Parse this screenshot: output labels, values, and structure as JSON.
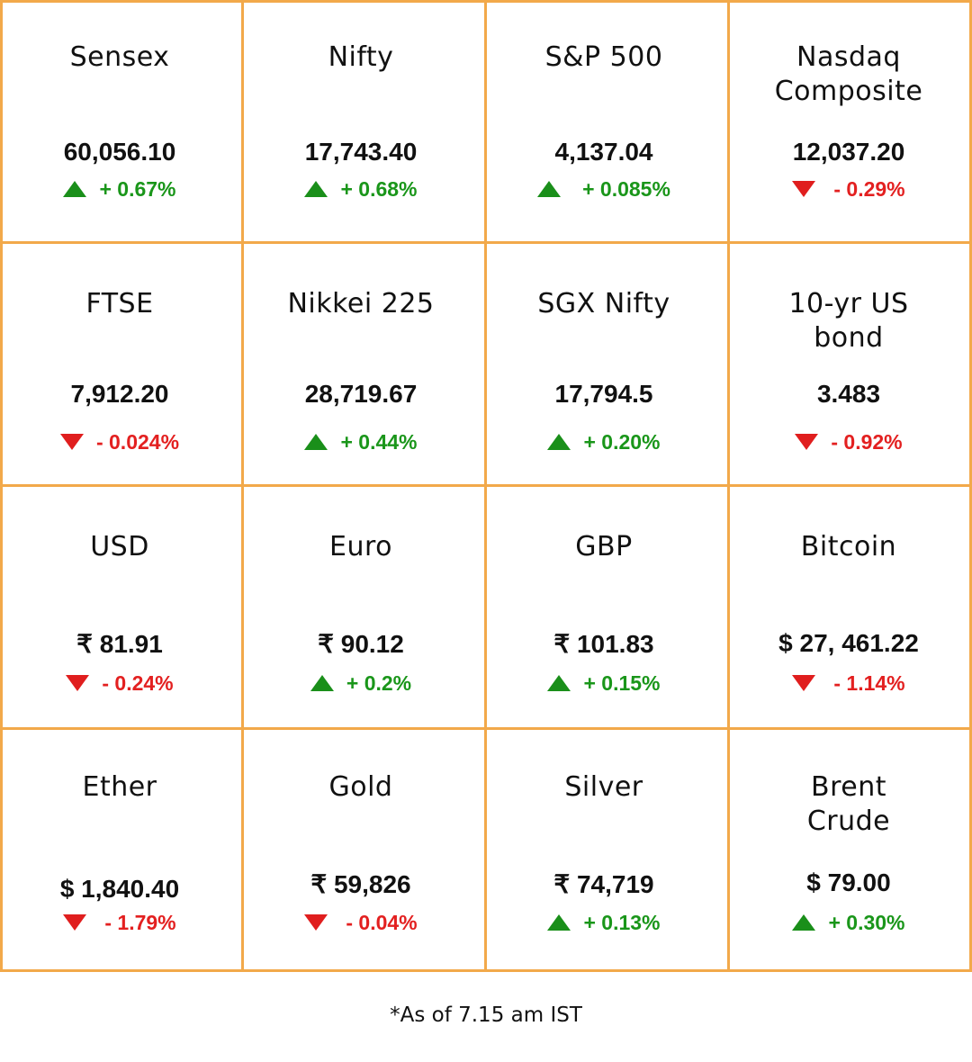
{
  "markets": [
    {
      "name": "Sensex",
      "value": "60,056.10",
      "change": "+ 0.67%",
      "direction": "up"
    },
    {
      "name": "Nifty",
      "value": "17,743.40",
      "change": "+ 0.68%",
      "direction": "up"
    },
    {
      "name": "S&P 500",
      "value": "4,137.04",
      "change": "+ 0.085%",
      "direction": "up"
    },
    {
      "name": "Nasdaq Composite",
      "value": "12,037.20",
      "change": "- 0.29%",
      "direction": "down"
    },
    {
      "name": "FTSE",
      "value": "7,912.20",
      "change": "- 0.024%",
      "direction": "down"
    },
    {
      "name": "Nikkei 225",
      "value": "28,719.67",
      "change": "+ 0.44%",
      "direction": "up"
    },
    {
      "name": "SGX Nifty",
      "value": "17,794.5",
      "change": "+ 0.20%",
      "direction": "up"
    },
    {
      "name": "10-yr US bond",
      "value": "3.483",
      "change": "- 0.92%",
      "direction": "down"
    },
    {
      "name": "USD",
      "value": "₹ 81.91",
      "change": "- 0.24%",
      "direction": "down"
    },
    {
      "name": "Euro",
      "value": "₹ 90.12",
      "change": "+ 0.2%",
      "direction": "up"
    },
    {
      "name": "GBP",
      "value": "₹ 101.83",
      "change": "+ 0.15%",
      "direction": "up"
    },
    {
      "name": "Bitcoin",
      "value": "$ 27, 461.22",
      "change": "- 1.14%",
      "direction": "down"
    },
    {
      "name": "Ether",
      "value": "$ 1,840.40",
      "change": "- 1.79%",
      "direction": "down"
    },
    {
      "name": "Gold",
      "value": "₹ 59,826",
      "change": "- 0.04%",
      "direction": "down"
    },
    {
      "name": "Silver",
      "value": "₹ 74,719",
      "change": "+ 0.13%",
      "direction": "up"
    },
    {
      "name": "Brent Crude",
      "value": "$ 79.00",
      "change": "+ 0.30%",
      "direction": "up"
    }
  ],
  "footnote": "*As of 7.15 am IST",
  "colors": {
    "grid": "#F2A94A",
    "up": "#1a961a",
    "down": "#e32020"
  }
}
